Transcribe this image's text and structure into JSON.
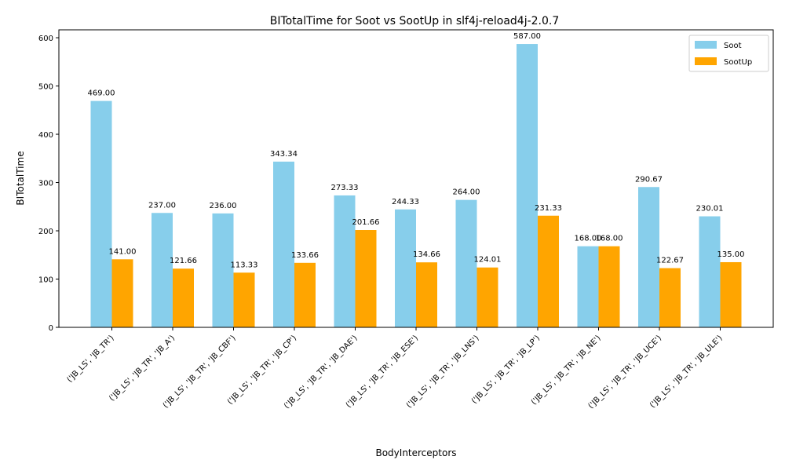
{
  "chart_data": {
    "type": "bar",
    "title": "BITotalTime for Soot vs SootUp in slf4j-reload4j-2.0.7",
    "xlabel": "BodyInterceptors",
    "ylabel": "BITotalTime",
    "ylim": [
      0,
      616.35
    ],
    "yticks": [
      0,
      100,
      200,
      300,
      400,
      500,
      600
    ],
    "grid": false,
    "legend_position": "top-right",
    "categories": [
      "('JB_LS', 'JB_TR')",
      "('JB_LS', 'JB_TR', 'JB_A')",
      "('JB_LS', 'JB_TR', 'JB_CBF')",
      "('JB_LS', 'JB_TR', 'JB_CP')",
      "('JB_LS', 'JB_TR', 'JB_DAE')",
      "('JB_LS', 'JB_TR', 'JB_ESE')",
      "('JB_LS', 'JB_TR', 'JB_LNS')",
      "('JB_LS', 'JB_TR', 'JB_LP')",
      "('JB_LS', 'JB_TR', 'JB_NE')",
      "('JB_LS', 'JB_TR', 'JB_UCE')",
      "('JB_LS', 'JB_TR', 'JB_ULE')"
    ],
    "series": [
      {
        "name": "Soot",
        "color": "#87CEEB",
        "values": [
          469.0,
          237.0,
          236.0,
          343.34,
          273.33,
          244.33,
          264.0,
          587.0,
          168.0,
          290.67,
          230.01
        ],
        "labels": [
          "469.00",
          "237.00",
          "236.00",
          "343.34",
          "273.33",
          "244.33",
          "264.00",
          "587.00",
          "168.00",
          "290.67",
          "230.01"
        ]
      },
      {
        "name": "SootUp",
        "color": "#FFA500",
        "values": [
          141.0,
          121.66,
          113.33,
          133.66,
          201.66,
          134.66,
          124.01,
          231.33,
          168.0,
          122.67,
          135.0
        ],
        "labels": [
          "141.00",
          "121.66",
          "113.33",
          "133.66",
          "201.66",
          "134.66",
          "124.01",
          "231.33",
          "168.00",
          "122.67",
          "135.00"
        ]
      }
    ]
  }
}
